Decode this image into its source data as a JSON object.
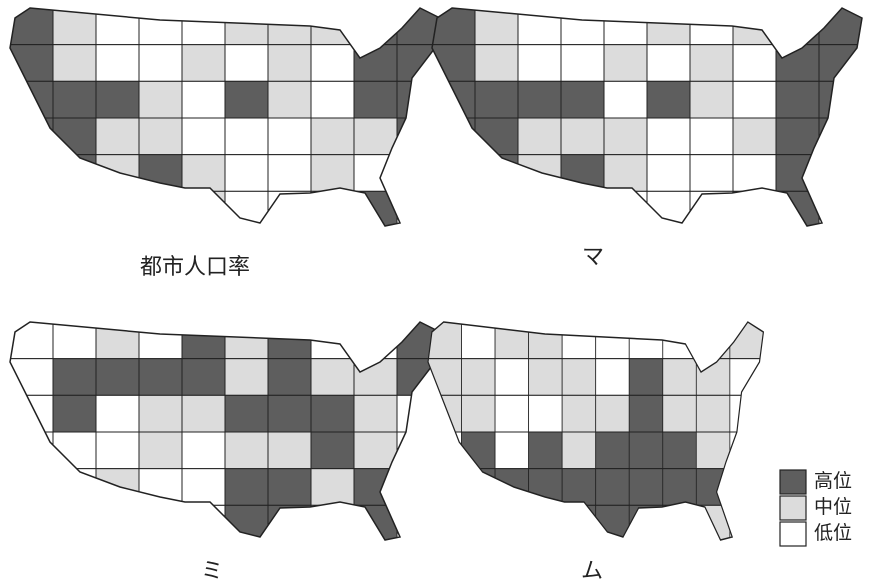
{
  "maps": [
    {
      "caption": "都市人口率",
      "levels": [
        [
          0,
          1,
          2,
          2,
          2,
          1,
          1,
          1,
          0,
          0
        ],
        [
          0,
          1,
          2,
          2,
          1,
          2,
          1,
          2,
          0,
          0
        ],
        [
          0,
          0,
          0,
          1,
          2,
          0,
          1,
          2,
          0,
          0
        ],
        [
          0,
          0,
          1,
          1,
          2,
          2,
          2,
          1,
          1,
          0
        ],
        [
          2,
          0,
          1,
          0,
          1,
          2,
          2,
          1,
          2,
          2
        ],
        [
          2,
          2,
          2,
          0,
          1,
          2,
          2,
          2,
          0,
          2
        ]
      ]
    },
    {
      "caption": "マ",
      "levels": [
        [
          0,
          1,
          2,
          2,
          2,
          1,
          2,
          1,
          0,
          0
        ],
        [
          0,
          1,
          2,
          2,
          1,
          2,
          1,
          2,
          0,
          0
        ],
        [
          0,
          0,
          0,
          0,
          2,
          0,
          1,
          2,
          0,
          0
        ],
        [
          0,
          0,
          1,
          1,
          1,
          2,
          2,
          1,
          0,
          0
        ],
        [
          2,
          0,
          1,
          0,
          1,
          2,
          2,
          2,
          0,
          2
        ],
        [
          2,
          2,
          2,
          0,
          2,
          2,
          2,
          0,
          0,
          2
        ]
      ]
    },
    {
      "caption": "ミ",
      "levels": [
        [
          2,
          2,
          1,
          2,
          0,
          1,
          0,
          2,
          2,
          0
        ],
        [
          2,
          0,
          0,
          0,
          0,
          1,
          0,
          1,
          1,
          0
        ],
        [
          2,
          0,
          2,
          1,
          1,
          0,
          0,
          0,
          1,
          2
        ],
        [
          2,
          2,
          2,
          1,
          2,
          1,
          1,
          0,
          1,
          2
        ],
        [
          2,
          2,
          1,
          2,
          2,
          0,
          0,
          1,
          0,
          2
        ],
        [
          2,
          2,
          2,
          2,
          2,
          0,
          0,
          2,
          0,
          2
        ]
      ]
    },
    {
      "caption": "ム",
      "levels": [
        [
          1,
          2,
          1,
          1,
          2,
          2,
          2,
          2,
          1,
          1
        ],
        [
          1,
          1,
          2,
          1,
          1,
          2,
          0,
          1,
          1,
          2
        ],
        [
          1,
          1,
          2,
          2,
          1,
          1,
          0,
          1,
          1,
          2
        ],
        [
          2,
          0,
          2,
          0,
          1,
          0,
          0,
          0,
          1,
          2
        ],
        [
          2,
          0,
          0,
          0,
          0,
          0,
          0,
          0,
          0,
          2
        ],
        [
          2,
          2,
          0,
          0,
          0,
          0,
          0,
          0,
          1,
          2
        ]
      ]
    }
  ],
  "legend": [
    {
      "label": "高位",
      "color": "#5e5e5e"
    },
    {
      "label": "中位",
      "color": "#dcdcdc"
    },
    {
      "label": "低位",
      "color": "#ffffff"
    }
  ]
}
